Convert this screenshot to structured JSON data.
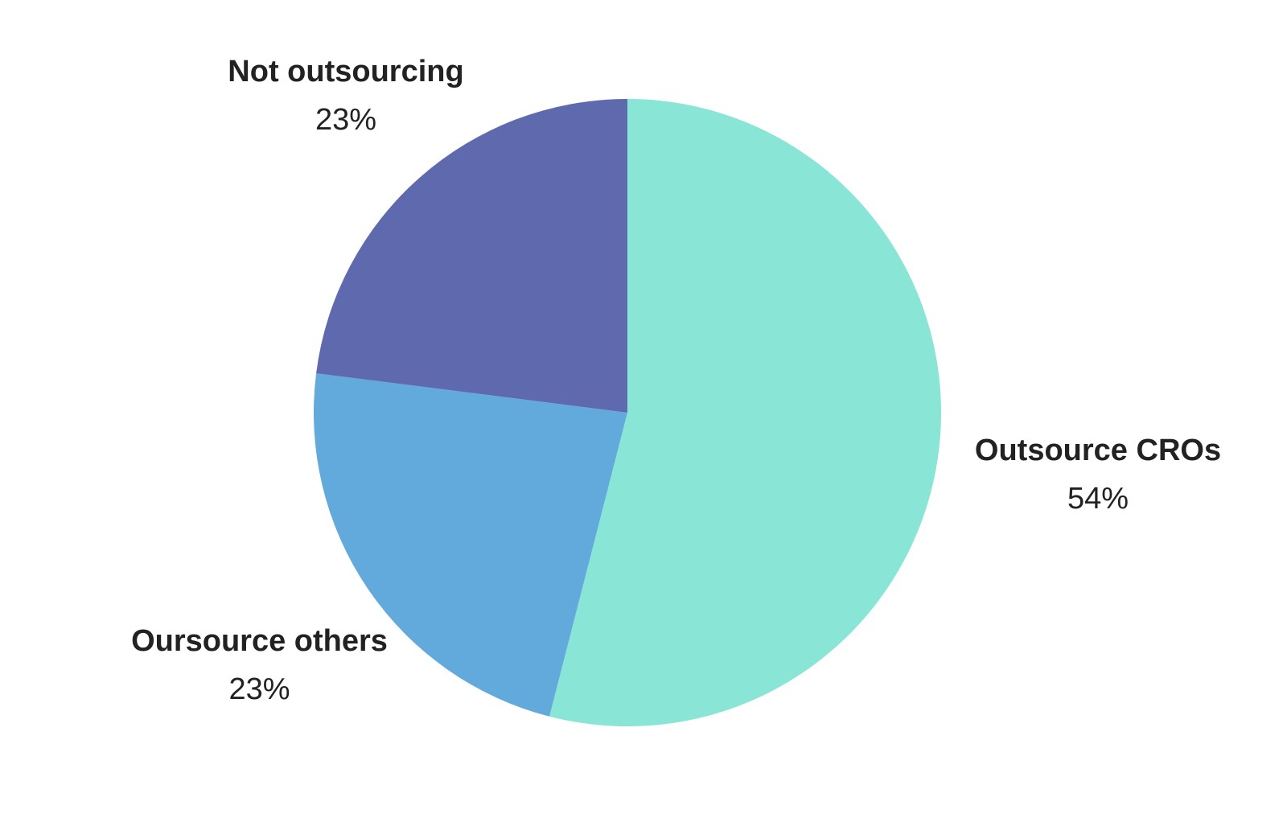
{
  "chart_data": {
    "type": "pie",
    "title": "",
    "start_angle_deg": 0,
    "direction": "clockwise",
    "center": [
      780,
      513
    ],
    "radius": 390,
    "categories": [
      "Outsource CROs",
      "Oursource others",
      "Not outsourcing"
    ],
    "values": [
      54,
      23,
      23
    ],
    "labels": [
      "54%",
      "23%",
      "23%"
    ],
    "colors": [
      "#89e5d5",
      "#62a9dc",
      "#5f6aae"
    ],
    "legend": "none"
  },
  "slices": [
    {
      "name": "Outsource CROs",
      "pct": "54%",
      "color": "#89e5d5"
    },
    {
      "name": "Oursource others",
      "pct": "23%",
      "color": "#62a9dc"
    },
    {
      "name": "Not outsourcing",
      "pct": "23%",
      "color": "#5f6aae"
    }
  ]
}
